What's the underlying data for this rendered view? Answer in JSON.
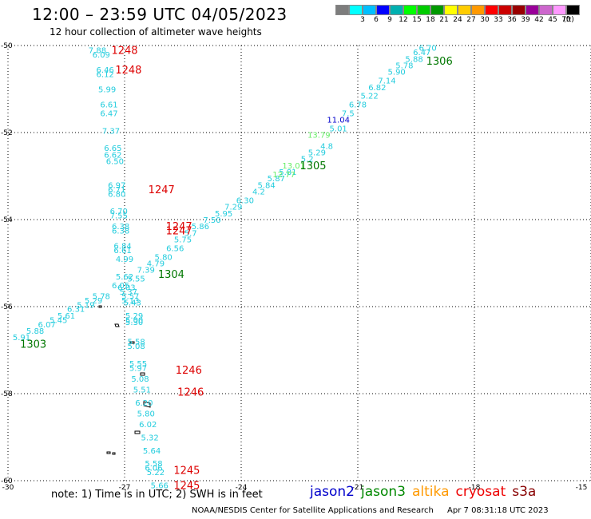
{
  "title": "12:00 – 23:59 UTC 04/05/2023",
  "subtitle": "12 hour collection of altimeter wave heights",
  "legend": {
    "unit": "(ft)",
    "colors": [
      "#7d7d7d",
      "#00ffff",
      "#00bfff",
      "#0000ff",
      "#00b0b0",
      "#00ff00",
      "#00cc00",
      "#009900",
      "#ffff00",
      "#ffcc00",
      "#ff9900",
      "#ff0000",
      "#cc0000",
      "#990000",
      "#990099",
      "#cc66cc",
      "#ff99ff",
      "#000000"
    ],
    "labels": [
      "3",
      "6",
      "9",
      "12",
      "15",
      "18",
      "21",
      "24",
      "27",
      "30",
      "33",
      "36",
      "39",
      "42",
      "45",
      "70"
    ]
  },
  "axes": {
    "lat_labels": [
      "-50",
      "-52",
      "-54",
      "-56",
      "-58",
      "-60"
    ],
    "lon_labels": [
      "-30",
      "-27",
      "-24",
      "-21",
      "-18",
      "-15"
    ]
  },
  "tracks": [
    {
      "color": "#22ccdd",
      "points": [
        [
          "7.88",
          -27.7,
          -50.1
        ],
        [
          "6.09",
          -27.6,
          -50.2
        ],
        [
          "6.46",
          -27.5,
          -50.55
        ],
        [
          "6.12",
          -27.5,
          -50.65
        ],
        [
          "5.99",
          -27.45,
          -51.0
        ],
        [
          "6.61",
          -27.4,
          -51.35
        ],
        [
          "6.47",
          -27.4,
          -51.55
        ],
        [
          "7.37",
          -27.35,
          -51.95
        ],
        [
          "6.65",
          -27.3,
          -52.35
        ],
        [
          "6.62",
          -27.3,
          -52.5
        ],
        [
          "6.50",
          -27.25,
          -52.65
        ],
        [
          "6.97",
          -27.2,
          -53.2
        ],
        [
          "6.71",
          -27.2,
          -53.3
        ],
        [
          "6.80",
          -27.2,
          -53.4
        ],
        [
          "6.70",
          -27.15,
          -53.8
        ],
        [
          "7.55",
          -27.15,
          -53.9
        ],
        [
          "6.38",
          -27.1,
          -54.15
        ],
        [
          "6.38",
          -27.1,
          -54.25
        ],
        [
          "6.84",
          -27.05,
          -54.6
        ],
        [
          "6.61",
          -27.05,
          -54.7
        ],
        [
          "4.99",
          -27.0,
          -54.9
        ],
        [
          "5.62",
          -27.0,
          -55.3
        ],
        [
          "6.03",
          -26.95,
          -55.55
        ],
        [
          "5.37",
          -26.9,
          -55.65
        ],
        [
          "5.57",
          -26.85,
          -55.75
        ],
        [
          "5.13",
          -26.85,
          -55.85
        ],
        [
          "5.43",
          -26.8,
          -55.9
        ],
        [
          "5.29",
          -26.75,
          -56.2
        ],
        [
          "5.00",
          -26.75,
          -56.3
        ],
        [
          "5.30",
          -26.75,
          -56.35
        ],
        [
          "5.58",
          -26.7,
          -56.8
        ],
        [
          "5.08",
          -26.7,
          -56.9
        ],
        [
          "5.55",
          -26.65,
          -57.3
        ],
        [
          "5.97",
          -26.65,
          -57.4
        ],
        [
          "5.08",
          -26.6,
          -57.65
        ],
        [
          "5.51",
          -26.55,
          -57.9
        ],
        [
          "6.20",
          -26.5,
          -58.2
        ],
        [
          "5.80",
          -26.45,
          -58.45
        ],
        [
          "6.02",
          -26.4,
          -58.7
        ],
        [
          "5.32",
          -26.35,
          -59.0
        ],
        [
          "5.64",
          -26.3,
          -59.3
        ],
        [
          "5.58",
          -26.25,
          -59.6
        ],
        [
          "6.06",
          -26.25,
          -59.7
        ],
        [
          "5.22",
          -26.2,
          -59.8
        ],
        [
          "5.66",
          -26.1,
          -60.1
        ]
      ]
    },
    {
      "color": "#22ccdd",
      "points": [
        [
          "5.91",
          -29.65,
          -56.7
        ],
        [
          "5.88",
          -29.3,
          -56.55
        ],
        [
          "6.07",
          -29.0,
          -56.4
        ],
        [
          "5.45",
          -28.7,
          -56.3
        ],
        [
          "5.61",
          -28.5,
          -56.2
        ],
        [
          "6.31",
          -28.25,
          -56.05
        ],
        [
          "5.19",
          -28.0,
          -55.95
        ],
        [
          "5.29",
          -27.8,
          -55.85
        ],
        [
          "5.78",
          -27.6,
          -55.75
        ],
        [
          "6.05",
          -27.1,
          -55.5
        ],
        [
          "5.55",
          -26.7,
          -55.35
        ],
        [
          "7.39",
          -26.45,
          -55.15
        ],
        [
          "4.79",
          -26.2,
          -55.0
        ],
        [
          "5.80",
          -26.0,
          -54.85
        ],
        [
          "6.56",
          -25.7,
          -54.65
        ],
        [
          "5.75",
          -25.5,
          -54.45
        ],
        [
          "5.7",
          -25.3,
          -54.3
        ],
        [
          "5.86",
          -25.05,
          -54.15
        ],
        [
          "7.50",
          -24.75,
          -54.0
        ],
        [
          "5.95",
          -24.45,
          -53.85
        ],
        [
          "7.29",
          -24.2,
          -53.7
        ],
        [
          "6.30",
          -23.9,
          -53.55
        ],
        [
          "4.2",
          -23.55,
          -53.35
        ],
        [
          "5.84",
          -23.35,
          -53.2
        ],
        [
          "5.87",
          -23.1,
          -53.05
        ],
        [
          "5.81",
          -22.8,
          -52.9
        ],
        [
          "5.2",
          -22.3,
          -52.6
        ],
        [
          "5.29",
          -22.05,
          -52.45
        ],
        [
          "4.8",
          -21.8,
          -52.3
        ],
        [
          "5.01",
          -21.5,
          -51.9
        ],
        [
          "7.5",
          -21.25,
          -51.55
        ],
        [
          "6.78",
          -21.0,
          -51.35
        ],
        [
          "5.22",
          -20.7,
          -51.15
        ],
        [
          "6.82",
          -20.5,
          -50.95
        ],
        [
          "7.14",
          -20.25,
          -50.8
        ],
        [
          "5.90",
          -20.0,
          -50.6
        ],
        [
          "5.78",
          -19.8,
          -50.45
        ],
        [
          "5.88",
          -19.55,
          -50.3
        ],
        [
          "6.47",
          -19.35,
          -50.15
        ],
        [
          "6.70",
          -19.2,
          -50.05
        ]
      ]
    },
    {
      "color": "#66ee66",
      "points": [
        [
          "13.01",
          -22.65,
          -52.75
        ],
        [
          "12.77",
          -22.9,
          -52.95
        ],
        [
          "13.79",
          -22.0,
          -52.05
        ]
      ]
    },
    {
      "color": "#0000cc",
      "points": [
        [
          "11.04",
          -21.5,
          -51.7
        ]
      ]
    }
  ],
  "passes": [
    {
      "label": "1248",
      "color": "#dd0000",
      "lon": -27.0,
      "lat": -50.1
    },
    {
      "label": "1248",
      "color": "#dd0000",
      "lon": -26.9,
      "lat": -50.55
    },
    {
      "label": "1247",
      "color": "#dd0000",
      "lon": -26.05,
      "lat": -53.3
    },
    {
      "label": "1247",
      "color": "#dd0000",
      "lon": -25.6,
      "lat": -54.15
    },
    {
      "label": "1247",
      "color": "#dd0000",
      "lon": -25.6,
      "lat": -54.25
    },
    {
      "label": "1246",
      "color": "#dd0000",
      "lon": -25.35,
      "lat": -57.45
    },
    {
      "label": "1246",
      "color": "#dd0000",
      "lon": -25.3,
      "lat": -57.95
    },
    {
      "label": "1245",
      "color": "#dd0000",
      "lon": -25.4,
      "lat": -59.75
    },
    {
      "label": "1245",
      "color": "#dd0000",
      "lon": -25.4,
      "lat": -60.1
    },
    {
      "label": "1303",
      "color": "#007700",
      "lon": -29.35,
      "lat": -56.85
    },
    {
      "label": "1304",
      "color": "#007700",
      "lon": -25.8,
      "lat": -55.25
    },
    {
      "label": "1305",
      "color": "#007700",
      "lon": -22.15,
      "lat": -52.75
    },
    {
      "label": "1306",
      "color": "#007700",
      "lon": -18.9,
      "lat": -50.35
    }
  ],
  "note": "note: 1) Time is in UTC; 2) SWH is in feet",
  "satellites": [
    {
      "name": "jason2",
      "color": "#0000cc"
    },
    {
      "name": "jason3",
      "color": "#008800"
    },
    {
      "name": "altika",
      "color": "#ff9900"
    },
    {
      "name": "cryosat",
      "color": "#ee0000"
    },
    {
      "name": "s3a",
      "color": "#880000"
    }
  ],
  "footer": {
    "agency": "NOAA/NESDIS Center for Satellite Applications and Research",
    "timestamp": "Apr  7 08:31:18 UTC 2023"
  }
}
